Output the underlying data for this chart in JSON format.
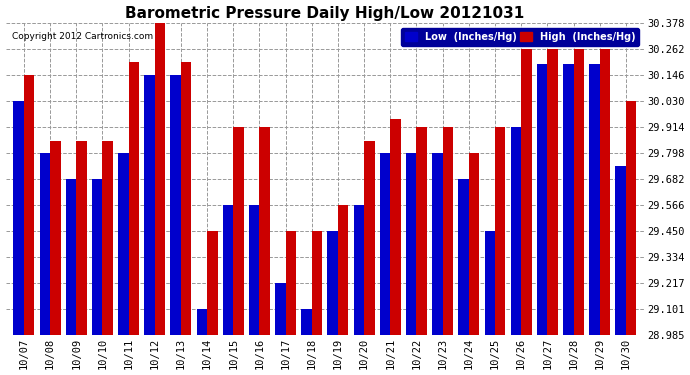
{
  "title": "Barometric Pressure Daily High/Low 20121031",
  "copyright": "Copyright 2012 Cartronics.com",
  "ylabel_right_ticks": [
    28.985,
    29.101,
    29.217,
    29.334,
    29.45,
    29.566,
    29.682,
    29.798,
    29.914,
    30.03,
    30.146,
    30.262,
    30.378
  ],
  "ylim": [
    28.985,
    30.378
  ],
  "dates": [
    "10/07",
    "10/08",
    "10/09",
    "10/10",
    "10/11",
    "10/12",
    "10/13",
    "10/14",
    "10/15",
    "10/16",
    "10/17",
    "10/18",
    "10/19",
    "10/20",
    "10/21",
    "10/22",
    "10/23",
    "10/24",
    "10/25",
    "10/26",
    "10/27",
    "10/28",
    "10/29",
    "10/30"
  ],
  "low": [
    30.03,
    29.798,
    29.682,
    29.682,
    29.798,
    30.146,
    30.146,
    29.101,
    29.566,
    29.566,
    29.217,
    29.101,
    29.45,
    29.566,
    29.798,
    29.798,
    29.798,
    29.682,
    29.45,
    29.914,
    30.195,
    30.195,
    30.195,
    29.74
  ],
  "high": [
    30.146,
    29.85,
    29.85,
    29.85,
    30.205,
    30.378,
    30.205,
    29.45,
    29.914,
    29.914,
    29.45,
    29.45,
    29.566,
    29.85,
    29.95,
    29.914,
    29.914,
    29.798,
    29.914,
    30.262,
    30.262,
    30.262,
    30.262,
    30.03
  ],
  "low_color": "#0000cc",
  "high_color": "#cc0000",
  "bg_color": "#ffffff",
  "grid_color": "#999999",
  "bar_width": 0.4,
  "title_fontsize": 11,
  "tick_fontsize": 7.5,
  "legend_low_label": "Low  (Inches/Hg)",
  "legend_high_label": "High  (Inches/Hg)",
  "legend_bg": "#000099"
}
